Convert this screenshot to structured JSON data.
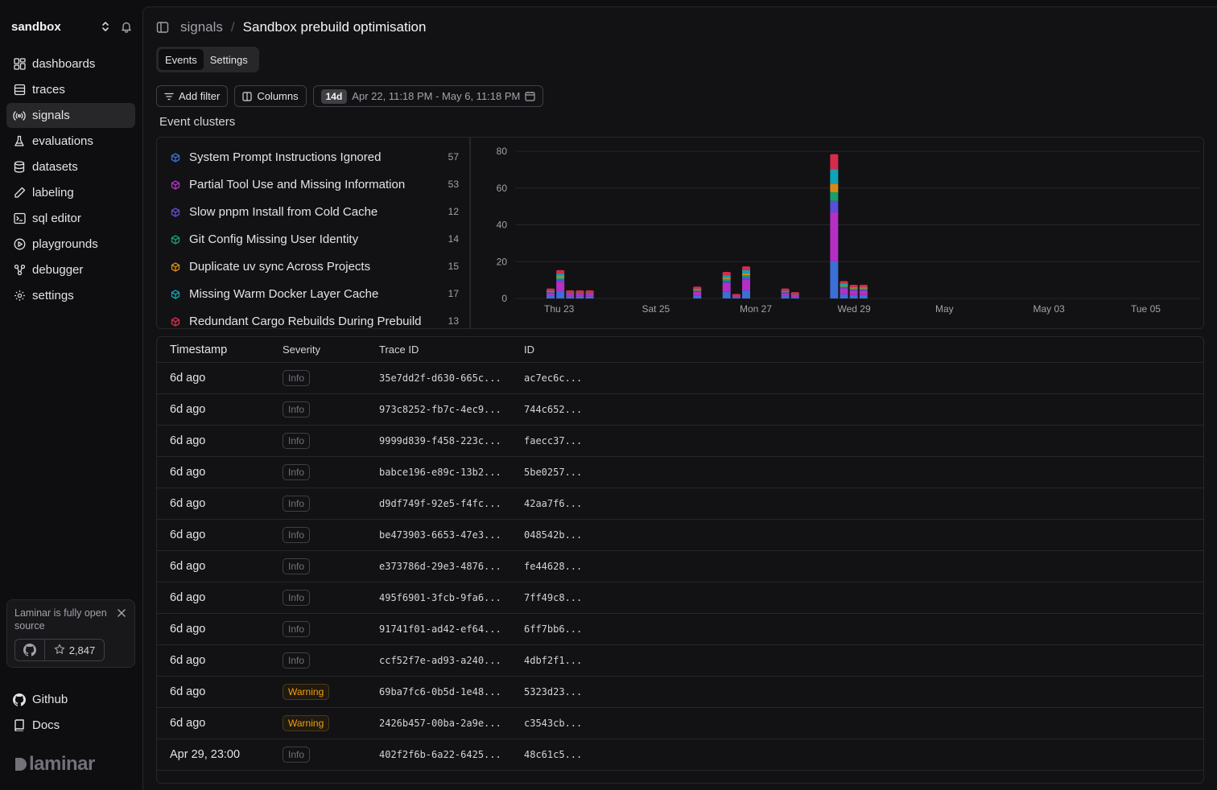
{
  "workspace": {
    "name": "sandbox"
  },
  "sidebar": {
    "items": [
      {
        "label": "dashboards",
        "icon": "dashboard-icon",
        "active": false
      },
      {
        "label": "traces",
        "icon": "traces-icon",
        "active": false
      },
      {
        "label": "signals",
        "icon": "signal-icon",
        "active": true
      },
      {
        "label": "evaluations",
        "icon": "flask-icon",
        "active": false
      },
      {
        "label": "datasets",
        "icon": "database-icon",
        "active": false
      },
      {
        "label": "labeling",
        "icon": "pen-icon",
        "active": false
      },
      {
        "label": "sql editor",
        "icon": "terminal-icon",
        "active": false
      },
      {
        "label": "playgrounds",
        "icon": "play-icon",
        "active": false
      },
      {
        "label": "debugger",
        "icon": "debugger-icon",
        "active": false
      },
      {
        "label": "settings",
        "icon": "gear-icon",
        "active": false
      }
    ],
    "promo": {
      "text": "Laminar is fully open source",
      "stars": "2,847"
    },
    "github_label": "Github",
    "docs_label": "Docs",
    "brand": "laminar"
  },
  "header": {
    "breadcrumb_parent": "signals",
    "breadcrumb_sep": "/",
    "title": "Sandbox prebuild optimisation"
  },
  "tabs": {
    "events": "Events",
    "settings": "Settings"
  },
  "toolbar": {
    "add_filter": "Add filter",
    "columns": "Columns",
    "range_pill": "14d",
    "range_text": "Apr 22, 11:18 PM - May 6, 11:18 PM"
  },
  "clusters": {
    "title": "Event clusters",
    "items": [
      {
        "name": "System Prompt Instructions Ignored",
        "count": "57",
        "color": "#3b6fd6"
      },
      {
        "name": "Partial Tool Use and Missing Information",
        "count": "53",
        "color": "#b62fc4"
      },
      {
        "name": "Slow pnpm Install from Cold Cache",
        "count": "12",
        "color": "#5a4fd6"
      },
      {
        "name": "Git Config Missing User Identity",
        "count": "14",
        "color": "#16a06b"
      },
      {
        "name": "Duplicate uv sync Across Projects",
        "count": "15",
        "color": "#d68a16"
      },
      {
        "name": "Missing Warm Docker Layer Cache",
        "count": "17",
        "color": "#13a3b8"
      },
      {
        "name": "Redundant Cargo Rebuilds During Prebuild",
        "count": "13",
        "color": "#d62b4a"
      }
    ]
  },
  "chart_data": {
    "type": "bar",
    "stacked": true,
    "ylim": [
      0,
      80
    ],
    "yticks": [
      "80",
      "60",
      "40",
      "20",
      "0"
    ],
    "xtick_labels": [
      "Thu 23",
      "Sat 25",
      "Mon 27",
      "Wed 29",
      "May",
      "May 03",
      "Tue 05"
    ],
    "grid": true,
    "bars": [
      {
        "slot": 0,
        "total": 5
      },
      {
        "slot": 1,
        "total": 15
      },
      {
        "slot": 2,
        "total": 4
      },
      {
        "slot": 3,
        "total": 4
      },
      {
        "slot": 4,
        "total": 4
      },
      {
        "slot": 15,
        "total": 6
      },
      {
        "slot": 18,
        "total": 14
      },
      {
        "slot": 19,
        "total": 2
      },
      {
        "slot": 20,
        "total": 17
      },
      {
        "slot": 24,
        "total": 5
      },
      {
        "slot": 25,
        "total": 3
      },
      {
        "slot": 29,
        "total": 78
      },
      {
        "slot": 30,
        "total": 9
      },
      {
        "slot": 31,
        "total": 7
      },
      {
        "slot": 32,
        "total": 7
      }
    ]
  },
  "table": {
    "headers": [
      "Timestamp",
      "Severity",
      "Trace ID",
      "ID"
    ],
    "rows": [
      {
        "ts": "6d ago",
        "sev": "Info",
        "trace": "35e7dd2f-d630-665c...",
        "id": "ac7ec6c..."
      },
      {
        "ts": "6d ago",
        "sev": "Info",
        "trace": "973c8252-fb7c-4ec9...",
        "id": "744c652..."
      },
      {
        "ts": "6d ago",
        "sev": "Info",
        "trace": "9999d839-f458-223c...",
        "id": "faecc37..."
      },
      {
        "ts": "6d ago",
        "sev": "Info",
        "trace": "babce196-e89c-13b2...",
        "id": "5be0257..."
      },
      {
        "ts": "6d ago",
        "sev": "Info",
        "trace": "d9df749f-92e5-f4fc...",
        "id": "42aa7f6..."
      },
      {
        "ts": "6d ago",
        "sev": "Info",
        "trace": "be473903-6653-47e3...",
        "id": "048542b..."
      },
      {
        "ts": "6d ago",
        "sev": "Info",
        "trace": "e373786d-29e3-4876...",
        "id": "fe44628..."
      },
      {
        "ts": "6d ago",
        "sev": "Info",
        "trace": "495f6901-3fcb-9fa6...",
        "id": "7ff49c8..."
      },
      {
        "ts": "6d ago",
        "sev": "Info",
        "trace": "91741f01-ad42-ef64...",
        "id": "6ff7bb6..."
      },
      {
        "ts": "6d ago",
        "sev": "Info",
        "trace": "ccf52f7e-ad93-a240...",
        "id": "4dbf2f1..."
      },
      {
        "ts": "6d ago",
        "sev": "Warning",
        "trace": "69ba7fc6-0b5d-1e48...",
        "id": "5323d23..."
      },
      {
        "ts": "6d ago",
        "sev": "Warning",
        "trace": "2426b457-00ba-2a9e...",
        "id": "c3543cb..."
      },
      {
        "ts": "Apr 29, 23:00",
        "sev": "Info",
        "trace": "402f2f6b-6a22-6425...",
        "id": "48c61c5..."
      }
    ]
  }
}
